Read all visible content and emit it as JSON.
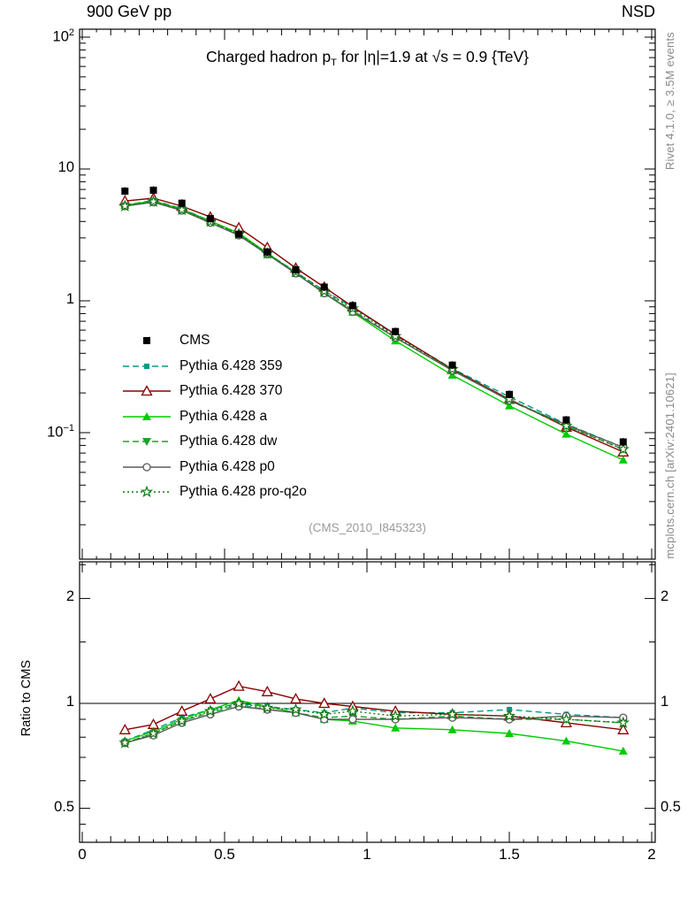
{
  "header": {
    "left_label": "900 GeV pp",
    "right_label": "NSD"
  },
  "title": {
    "prefix": "Charged hadron p",
    "sub": "T",
    "suffix": " for |η|=1.9 at √s = 0.9 {TeV}"
  },
  "watermark": "(CMS_2010_I845323)",
  "side_notes": {
    "top": "Rivet 4.1.0, ≥ 3.5M events",
    "bottom": "mcplots.cern.ch [arXiv:2401.10621]"
  },
  "ratio_panel": {
    "ylabel": "Ratio to CMS"
  },
  "chart_data": {
    "type": "line",
    "title": "Charged hadron pT for |η|=1.9 at √s = 0.9 {TeV}",
    "x": [
      0.15,
      0.25,
      0.35,
      0.45,
      0.55,
      0.65,
      0.75,
      0.85,
      0.95,
      1.1,
      1.3,
      1.5,
      1.7,
      1.9
    ],
    "x_axis": {
      "lim": [
        0,
        2.02
      ],
      "major_ticks": [
        {
          "v": 0,
          "label": "0"
        },
        {
          "v": 0.5,
          "label": "0.5"
        },
        {
          "v": 1,
          "label": "1"
        },
        {
          "v": 1.5,
          "label": "1.5"
        },
        {
          "v": 2,
          "label": "2"
        }
      ]
    },
    "main_axis": {
      "scale": "log",
      "lim": [
        0.011,
        112
      ],
      "ticks": [
        {
          "v": 100,
          "base": "10",
          "exp": "2"
        },
        {
          "v": 10,
          "base": "10",
          "exp": ""
        },
        {
          "v": 1,
          "base": "1",
          "exp": ""
        },
        {
          "v": 0.1,
          "base": "10",
          "exp": "−1"
        }
      ]
    },
    "ratio_axis": {
      "scale": "log",
      "lim": [
        0.4,
        2.55
      ],
      "reference_line": 1,
      "ticks": [
        {
          "v": 2,
          "label": "2"
        },
        {
          "v": 1,
          "label": "1"
        },
        {
          "v": 0.5,
          "label": "0.5"
        }
      ],
      "minor_ticks": [
        0.45,
        0.6,
        0.7,
        0.8,
        0.9,
        1.5,
        2.5
      ]
    },
    "series": [
      {
        "name": "CMS",
        "color": "#000000",
        "marker": "square",
        "line": "none",
        "values": [
          6.8,
          6.9,
          5.5,
          4.2,
          3.2,
          2.35,
          1.72,
          1.27,
          0.92,
          0.585,
          0.325,
          0.195,
          0.125,
          0.085
        ]
      },
      {
        "name": "Pythia 6.428 359",
        "color": "#009c86",
        "marker": "square-small",
        "line": "dashed",
        "ratio": [
          0.78,
          0.84,
          0.91,
          0.96,
          1.0,
          0.98,
          0.96,
          0.94,
          0.97,
          0.94,
          0.94,
          0.96,
          0.93,
          0.91
        ]
      },
      {
        "name": "Pythia 6.428 370",
        "color": "#8b0000",
        "marker": "tri-up-open",
        "line": "solid",
        "ratio": [
          0.84,
          0.87,
          0.95,
          1.03,
          1.12,
          1.08,
          1.03,
          1.0,
          0.98,
          0.95,
          0.93,
          0.92,
          0.88,
          0.84
        ]
      },
      {
        "name": "Pythia 6.428 a",
        "color": "#00cc00",
        "marker": "tri-up",
        "line": "solid",
        "ratio": [
          0.78,
          0.83,
          0.9,
          0.96,
          1.02,
          0.98,
          0.94,
          0.9,
          0.89,
          0.85,
          0.84,
          0.82,
          0.78,
          0.73
        ]
      },
      {
        "name": "Pythia 6.428 dw",
        "color": "#1da12b",
        "marker": "tri-down",
        "line": "dashed",
        "ratio": [
          0.77,
          0.82,
          0.89,
          0.94,
          0.99,
          0.96,
          0.94,
          0.91,
          0.92,
          0.9,
          0.92,
          0.9,
          0.9,
          0.88
        ]
      },
      {
        "name": "Pythia 6.428 p0",
        "color": "#5a5a5a",
        "marker": "circle-open",
        "line": "solid",
        "ratio": [
          0.77,
          0.81,
          0.88,
          0.93,
          0.98,
          0.96,
          0.94,
          0.9,
          0.9,
          0.9,
          0.91,
          0.9,
          0.92,
          0.91
        ]
      },
      {
        "name": "Pythia 6.428 pro-q2o",
        "color": "#147814",
        "marker": "star-open",
        "line": "dotted",
        "ratio": [
          0.77,
          0.82,
          0.89,
          0.95,
          1.0,
          0.97,
          0.96,
          0.93,
          0.95,
          0.92,
          0.93,
          0.92,
          0.9,
          0.88
        ]
      }
    ]
  }
}
